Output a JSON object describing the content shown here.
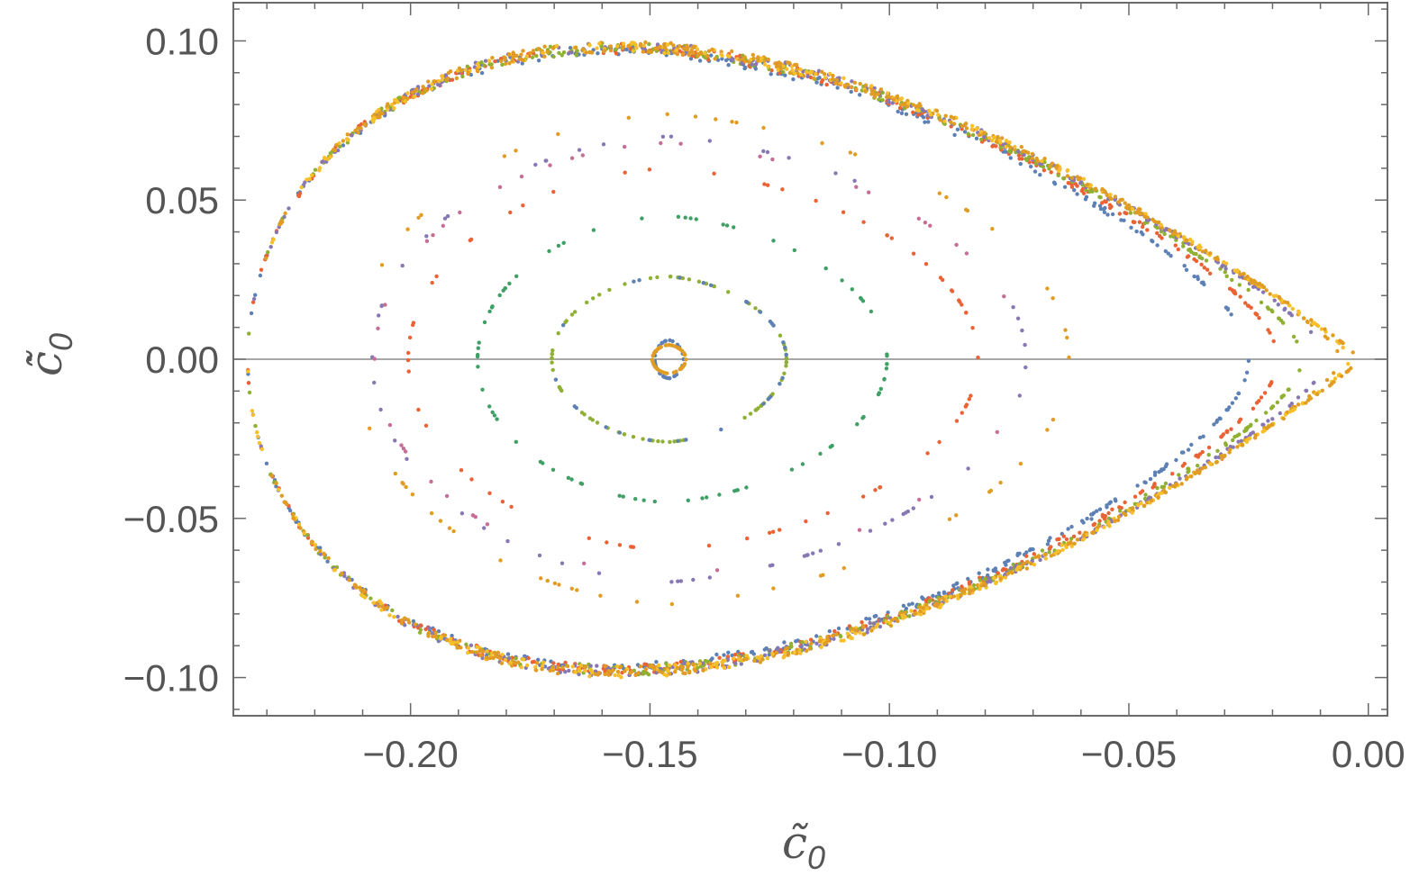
{
  "chart_data": {
    "type": "scatter",
    "title": "",
    "xlabel": {
      "base": "c̃",
      "sub": "0"
    },
    "ylabel": {
      "base": "c̃̇",
      "sub": "0"
    },
    "xlim": [
      -0.237,
      0.004
    ],
    "ylim": [
      -0.112,
      0.112
    ],
    "x_ticks": [
      -0.2,
      -0.15,
      -0.1,
      -0.05,
      0.0
    ],
    "x_tick_labels": [
      "−0.20",
      "−0.15",
      "−0.10",
      "−0.05",
      "0.00"
    ],
    "y_ticks": [
      0.1,
      0.05,
      0.0,
      -0.05,
      -0.1
    ],
    "y_tick_labels": [
      "0.10",
      "0.05",
      "0.00",
      "−0.05",
      "−0.10"
    ],
    "x_minor_step": 0.01,
    "y_minor_step": 0.01,
    "grid": false,
    "zero_line": true,
    "legend": "none",
    "series": [
      {
        "color": "#5E81B5",
        "c": -0.146,
        "amp": 0.006,
        "xl": -0.149,
        "xr": -0.143,
        "n": 40
      },
      {
        "color": "#E19C24",
        "c": -0.146,
        "amp": 0.0045,
        "xl": -0.1495,
        "xr": -0.1425,
        "n": 60
      },
      {
        "color": "#8FB032",
        "c": -0.146,
        "amp": 0.026,
        "xl": -0.1705,
        "xr": -0.1215,
        "n": 90
      },
      {
        "color": "#5E81B5",
        "c": -0.146,
        "amp": 0.026,
        "xl": -0.1705,
        "xr": -0.1215,
        "n": 30
      },
      {
        "color": "#3EA065",
        "c": -0.146,
        "amp": 0.045,
        "xl": -0.186,
        "xr": -0.1005,
        "n": 80
      },
      {
        "color": "#E19C24",
        "c": -0.146,
        "amp": 0.077,
        "xl": -0.2115,
        "xr": -0.0625,
        "n": 60
      },
      {
        "color": "#EB6235",
        "c": -0.146,
        "amp": 0.06,
        "xl": -0.2005,
        "xr": -0.0815,
        "n": 70
      },
      {
        "color": "#8778B3",
        "c": -0.146,
        "amp": 0.07,
        "xl": -0.208,
        "xr": -0.0715,
        "n": 60
      },
      {
        "color": "#C56E96",
        "c": -0.146,
        "amp": 0.068,
        "xl": -0.2075,
        "xr": -0.072,
        "n": 40
      },
      {
        "color": "#5E81B5",
        "sep": true,
        "eps": 0.025,
        "n": 420
      },
      {
        "color": "#EB6235",
        "sep": true,
        "eps": 0.019,
        "n": 420
      },
      {
        "color": "#8FB032",
        "sep": true,
        "eps": 0.014,
        "n": 420
      },
      {
        "color": "#8778B3",
        "sep": true,
        "eps": 0.009,
        "n": 420
      },
      {
        "color": "#E19C24",
        "sep": true,
        "eps": 0.006,
        "n": 420
      },
      {
        "color": "#F7C02B",
        "sep": true,
        "eps": 0.004,
        "n": 420
      },
      {
        "color": "#E19C24",
        "sep": true,
        "eps": 0.0025,
        "n": 300
      }
    ]
  }
}
